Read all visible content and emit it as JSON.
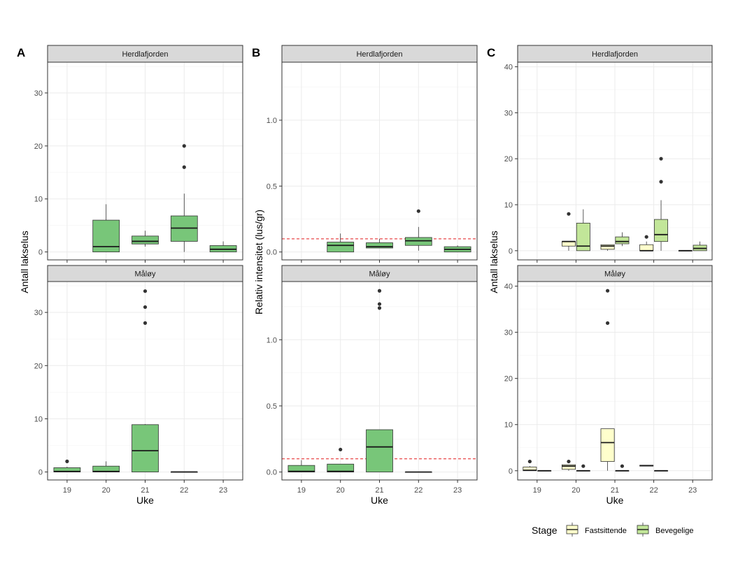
{
  "colors": {
    "fastsittende": "#FFFFCC",
    "bevegelige": "#C2E699",
    "single_box": "#78C679",
    "strip_bg": "#D9D9D9",
    "panel_border": "#333333",
    "grid": "#EBEBEB",
    "threshold": "#E31A1C",
    "text": "#4D4D4D"
  },
  "legend": {
    "title": "Stage",
    "items": [
      {
        "key": "fastsittende",
        "label": "Fastsittende"
      },
      {
        "key": "bevegelige",
        "label": "Bevegelige"
      }
    ]
  },
  "chart_data": [
    {
      "id": "A",
      "type": "boxplot",
      "panel_label": "A",
      "xlabel": "Uke",
      "ylabel": "Antall lakselus",
      "categories": [
        "19",
        "20",
        "21",
        "22",
        "23"
      ],
      "ylim": [
        -1.5,
        35.8
      ],
      "yticks": [
        0,
        10,
        20,
        30
      ],
      "facets": [
        {
          "strip": "Herdlafjorden",
          "series": [
            {
              "name": "All",
              "color_key": "single_box",
              "boxes": [
                {
                  "x": "20",
                  "q1": 0,
                  "median": 1,
                  "q3": 6,
                  "low": 0,
                  "high": 9,
                  "outliers": []
                },
                {
                  "x": "21",
                  "q1": 1.5,
                  "median": 2,
                  "q3": 3,
                  "low": 1,
                  "high": 4,
                  "outliers": []
                },
                {
                  "x": "22",
                  "q1": 2,
                  "median": 4.5,
                  "q3": 6.8,
                  "low": 0,
                  "high": 11,
                  "outliers": [
                    16,
                    20
                  ]
                },
                {
                  "x": "23",
                  "q1": 0,
                  "median": 0.5,
                  "q3": 1.2,
                  "low": 0,
                  "high": 2,
                  "outliers": []
                }
              ]
            }
          ]
        },
        {
          "strip": "Måløy",
          "series": [
            {
              "name": "All",
              "color_key": "single_box",
              "boxes": [
                {
                  "x": "19",
                  "q1": 0,
                  "median": 0.1,
                  "q3": 0.8,
                  "low": 0,
                  "high": 1,
                  "outliers": [
                    2
                  ]
                },
                {
                  "x": "20",
                  "q1": 0,
                  "median": 0.1,
                  "q3": 1.1,
                  "low": 0,
                  "high": 2,
                  "outliers": []
                },
                {
                  "x": "21",
                  "q1": 0,
                  "median": 4,
                  "q3": 8.9,
                  "low": 0,
                  "high": 9,
                  "outliers": [
                    28,
                    31,
                    34
                  ]
                },
                {
                  "x": "22",
                  "q1": 0,
                  "median": 0,
                  "q3": 0,
                  "low": 0,
                  "high": 0,
                  "outliers": []
                }
              ]
            }
          ]
        }
      ]
    },
    {
      "id": "B",
      "type": "boxplot",
      "panel_label": "B",
      "xlabel": "Uke",
      "ylabel": "Relativ intensitet (lus/gr)",
      "categories": [
        "19",
        "20",
        "21",
        "22",
        "23"
      ],
      "ylim": [
        -0.06,
        1.44
      ],
      "yticks": [
        0.0,
        0.5,
        1.0
      ],
      "ytick_labels": [
        "0.0",
        "0.5",
        "1.0"
      ],
      "hline": 0.1,
      "facets": [
        {
          "strip": "Herdlafjorden",
          "series": [
            {
              "name": "All",
              "color_key": "single_box",
              "boxes": [
                {
                  "x": "20",
                  "q1": 0,
                  "median": 0.05,
                  "q3": 0.075,
                  "low": 0,
                  "high": 0.14,
                  "outliers": []
                },
                {
                  "x": "21",
                  "q1": 0.03,
                  "median": 0.04,
                  "q3": 0.07,
                  "low": 0.03,
                  "high": 0.1,
                  "outliers": []
                },
                {
                  "x": "22",
                  "q1": 0.05,
                  "median": 0.085,
                  "q3": 0.11,
                  "low": 0.01,
                  "high": 0.19,
                  "outliers": [
                    0.31
                  ]
                },
                {
                  "x": "23",
                  "q1": 0,
                  "median": 0.02,
                  "q3": 0.04,
                  "low": 0,
                  "high": 0.05,
                  "outliers": []
                }
              ]
            }
          ]
        },
        {
          "strip": "Måløy",
          "series": [
            {
              "name": "All",
              "color_key": "single_box",
              "boxes": [
                {
                  "x": "19",
                  "q1": 0,
                  "median": 0.005,
                  "q3": 0.05,
                  "low": 0,
                  "high": 0.09,
                  "outliers": []
                },
                {
                  "x": "20",
                  "q1": 0,
                  "median": 0.005,
                  "q3": 0.06,
                  "low": 0,
                  "high": 0.06,
                  "outliers": [
                    0.17
                  ]
                },
                {
                  "x": "21",
                  "q1": 0,
                  "median": 0.19,
                  "q3": 0.32,
                  "low": 0,
                  "high": 0.32,
                  "outliers": [
                    1.24,
                    1.27,
                    1.37
                  ]
                },
                {
                  "x": "22",
                  "q1": 0,
                  "median": 0,
                  "q3": 0,
                  "low": 0,
                  "high": 0,
                  "outliers": []
                }
              ]
            }
          ]
        }
      ]
    },
    {
      "id": "C",
      "type": "boxplot",
      "panel_label": "C",
      "xlabel": "Uke",
      "ylabel": "Antall lakselus",
      "categories": [
        "19",
        "20",
        "21",
        "22",
        "23"
      ],
      "ylim": [
        -2,
        41
      ],
      "yticks": [
        0,
        10,
        20,
        30,
        40
      ],
      "facets": [
        {
          "strip": "Herdlafjorden",
          "series": [
            {
              "name": "Fastsittende",
              "color_key": "fastsittende",
              "boxes": [
                {
                  "x": "20",
                  "q1": 1,
                  "median": 2,
                  "q3": 2,
                  "low": 0,
                  "high": 2,
                  "outliers": [
                    8
                  ]
                },
                {
                  "x": "21",
                  "q1": 0.3,
                  "median": 1,
                  "q3": 1.3,
                  "low": 0,
                  "high": 1.3,
                  "outliers": []
                },
                {
                  "x": "22",
                  "q1": 0,
                  "median": 0,
                  "q3": 1.3,
                  "low": 0,
                  "high": 2,
                  "outliers": [
                    3
                  ]
                },
                {
                  "x": "23",
                  "q1": 0,
                  "median": 0,
                  "q3": 0,
                  "low": 0,
                  "high": 0,
                  "outliers": []
                }
              ]
            },
            {
              "name": "Bevegelige",
              "color_key": "bevegelige",
              "boxes": [
                {
                  "x": "20",
                  "q1": 0,
                  "median": 1,
                  "q3": 6,
                  "low": 0,
                  "high": 9,
                  "outliers": []
                },
                {
                  "x": "21",
                  "q1": 1.5,
                  "median": 2,
                  "q3": 3,
                  "low": 1,
                  "high": 4,
                  "outliers": []
                },
                {
                  "x": "22",
                  "q1": 2,
                  "median": 3.5,
                  "q3": 6.8,
                  "low": 0,
                  "high": 11,
                  "outliers": [
                    15,
                    20
                  ]
                },
                {
                  "x": "23",
                  "q1": 0,
                  "median": 0.5,
                  "q3": 1.2,
                  "low": 0,
                  "high": 2,
                  "outliers": []
                }
              ]
            }
          ]
        },
        {
          "strip": "Måløy",
          "series": [
            {
              "name": "Fastsittende",
              "color_key": "fastsittende",
              "boxes": [
                {
                  "x": "19",
                  "q1": 0,
                  "median": 0.1,
                  "q3": 0.8,
                  "low": 0,
                  "high": 1,
                  "outliers": [
                    2
                  ]
                },
                {
                  "x": "20",
                  "q1": 0.3,
                  "median": 1,
                  "q3": 1.3,
                  "low": 0,
                  "high": 1.3,
                  "outliers": [
                    2
                  ]
                },
                {
                  "x": "21",
                  "q1": 2,
                  "median": 6.1,
                  "q3": 9.1,
                  "low": 0,
                  "high": 9.1,
                  "outliers": [
                    32,
                    39
                  ]
                },
                {
                  "x": "22",
                  "q1": 1,
                  "median": 1.1,
                  "q3": 1.2,
                  "low": 1,
                  "high": 1.2,
                  "outliers": []
                }
              ]
            },
            {
              "name": "Bevegelige",
              "color_key": "bevegelige",
              "boxes": [
                {
                  "x": "19",
                  "q1": 0,
                  "median": 0,
                  "q3": 0,
                  "low": 0,
                  "high": 0,
                  "outliers": []
                },
                {
                  "x": "20",
                  "q1": 0,
                  "median": 0,
                  "q3": 0,
                  "low": 0,
                  "high": 0,
                  "outliers": [
                    1
                  ]
                },
                {
                  "x": "21",
                  "q1": 0,
                  "median": 0,
                  "q3": 0,
                  "low": 0,
                  "high": 0,
                  "outliers": [
                    1
                  ]
                },
                {
                  "x": "22",
                  "q1": 0,
                  "median": 0,
                  "q3": 0,
                  "low": 0,
                  "high": 0,
                  "outliers": []
                }
              ]
            }
          ]
        }
      ]
    }
  ]
}
